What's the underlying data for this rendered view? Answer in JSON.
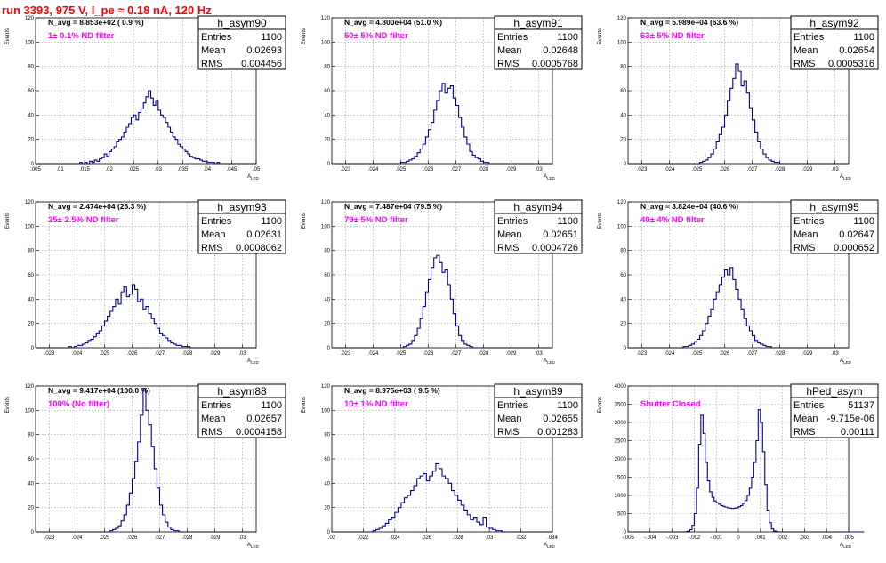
{
  "run_title": "run 3393,   975 V, I_pe ≈ 0.18 nA, 120 Hz",
  "stat_labels": {
    "entries": "Entries",
    "mean": "Mean",
    "rms": "RMS"
  },
  "y_axis_label": "Events",
  "x_axis_label": "A_LED",
  "chart_data": [
    {
      "type": "bar",
      "name": "h_asym90",
      "navg": "N_avg = 8.853e+02 ( 0.9 %)",
      "filter": "1± 0.1% ND filter",
      "entries": "1100",
      "mean": "0.02693",
      "rms": "0.004456",
      "xlim": [
        0.005,
        0.05
      ],
      "ylim": [
        0,
        120
      ],
      "xticks": [
        0.005,
        0.01,
        0.015,
        0.02,
        0.025,
        0.03,
        0.035,
        0.04,
        0.045,
        0.05
      ],
      "yticks": [
        0,
        20,
        40,
        60,
        80,
        100,
        120
      ],
      "x0": 0.005,
      "bin": 0.0005,
      "counts": [
        0,
        0,
        0,
        0,
        0,
        0,
        0,
        0,
        0,
        0,
        0,
        0,
        0,
        0,
        0,
        0,
        0,
        0,
        1,
        0,
        1,
        0,
        2,
        1,
        3,
        2,
        4,
        5,
        8,
        6,
        10,
        12,
        14,
        18,
        20,
        22,
        26,
        30,
        33,
        38,
        40,
        36,
        42,
        45,
        50,
        55,
        60,
        54,
        48,
        52,
        44,
        40,
        38,
        34,
        30,
        26,
        22,
        20,
        16,
        14,
        12,
        10,
        8,
        6,
        5,
        4,
        4,
        3,
        2,
        2,
        1,
        1,
        1,
        0,
        1,
        0,
        0,
        0,
        0,
        0,
        0,
        0,
        0,
        0,
        0,
        0,
        0,
        0,
        0,
        0
      ]
    },
    {
      "type": "bar",
      "name": "h_asym91",
      "navg": "N_avg = 4.800e+04 (51.0 %)",
      "filter": "50± 5% ND filter",
      "entries": "1100",
      "mean": "0.02648",
      "rms": "0.0005768",
      "xlim": [
        0.0225,
        0.0305
      ],
      "ylim": [
        0,
        120
      ],
      "xticks": [
        0.023,
        0.024,
        0.025,
        0.026,
        0.027,
        0.028,
        0.029,
        0.03
      ],
      "yticks": [
        0,
        20,
        40,
        60,
        80,
        100,
        120
      ],
      "x0": 0.0225,
      "bin": 0.0001,
      "counts": [
        0,
        0,
        0,
        0,
        0,
        0,
        0,
        0,
        0,
        0,
        0,
        0,
        0,
        0,
        0,
        0,
        0,
        0,
        0,
        0,
        0,
        0,
        0,
        0,
        0,
        1,
        1,
        2,
        3,
        4,
        6,
        9,
        12,
        16,
        22,
        28,
        34,
        44,
        52,
        60,
        66,
        58,
        62,
        64,
        54,
        48,
        38,
        30,
        22,
        16,
        10,
        7,
        5,
        4,
        2,
        1,
        1,
        0,
        0,
        0,
        0,
        0,
        0,
        0,
        0,
        0,
        0,
        0,
        0,
        0,
        0,
        0,
        0,
        0,
        0,
        0,
        0,
        0,
        0,
        0
      ]
    },
    {
      "type": "bar",
      "name": "h_asym92",
      "navg": "N_avg = 5.989e+04 (63.6 %)",
      "filter": "63± 5% ND filter",
      "entries": "1100",
      "mean": "0.02654",
      "rms": "0.0005316",
      "xlim": [
        0.0225,
        0.0305
      ],
      "ylim": [
        0,
        120
      ],
      "xticks": [
        0.023,
        0.024,
        0.025,
        0.026,
        0.027,
        0.028,
        0.029,
        0.03
      ],
      "yticks": [
        0,
        20,
        40,
        60,
        80,
        100,
        120
      ],
      "x0": 0.0225,
      "bin": 0.0001,
      "counts": [
        0,
        0,
        0,
        0,
        0,
        0,
        0,
        0,
        0,
        0,
        0,
        0,
        0,
        0,
        0,
        0,
        0,
        0,
        0,
        0,
        0,
        0,
        0,
        0,
        0,
        0,
        1,
        2,
        3,
        5,
        8,
        12,
        18,
        24,
        30,
        40,
        52,
        62,
        70,
        82,
        76,
        64,
        68,
        58,
        46,
        36,
        26,
        18,
        12,
        8,
        5,
        3,
        2,
        1,
        1,
        0,
        0,
        0,
        0,
        0,
        0,
        0,
        0,
        0,
        0,
        0,
        0,
        0,
        0,
        0,
        0,
        0,
        0,
        0,
        0,
        0,
        0,
        0,
        0,
        0
      ]
    },
    {
      "type": "bar",
      "name": "h_asym93",
      "navg": "N_avg = 2.474e+04 (26.3 %)",
      "filter": "25± 2.5% ND filter",
      "entries": "1100",
      "mean": "0.02631",
      "rms": "0.0008062",
      "xlim": [
        0.0225,
        0.0305
      ],
      "ylim": [
        0,
        120
      ],
      "xticks": [
        0.023,
        0.024,
        0.025,
        0.026,
        0.027,
        0.028,
        0.029,
        0.03
      ],
      "yticks": [
        0,
        20,
        40,
        60,
        80,
        100,
        120
      ],
      "x0": 0.0225,
      "bin": 0.0001,
      "counts": [
        0,
        0,
        0,
        0,
        0,
        0,
        0,
        0,
        0,
        0,
        0,
        0,
        1,
        0,
        1,
        2,
        2,
        3,
        4,
        6,
        7,
        9,
        12,
        14,
        18,
        22,
        26,
        30,
        34,
        40,
        36,
        46,
        50,
        42,
        44,
        52,
        48,
        38,
        40,
        32,
        34,
        28,
        24,
        20,
        16,
        12,
        10,
        8,
        6,
        4,
        3,
        2,
        2,
        1,
        1,
        1,
        0,
        0,
        0,
        0,
        0,
        0,
        0,
        0,
        0,
        0,
        0,
        0,
        0,
        0,
        0,
        0,
        0,
        0,
        0,
        0,
        0,
        0,
        0,
        0
      ]
    },
    {
      "type": "bar",
      "name": "h_asym94",
      "navg": "N_avg = 7.487e+04 (79.5 %)",
      "filter": "79± 5% ND filter",
      "entries": "1100",
      "mean": "0.02651",
      "rms": "0.0004726",
      "xlim": [
        0.0225,
        0.0305
      ],
      "ylim": [
        0,
        120
      ],
      "xticks": [
        0.023,
        0.024,
        0.025,
        0.026,
        0.027,
        0.028,
        0.029,
        0.03
      ],
      "yticks": [
        0,
        20,
        40,
        60,
        80,
        100,
        120
      ],
      "x0": 0.0225,
      "bin": 0.0001,
      "counts": [
        0,
        0,
        0,
        0,
        0,
        0,
        0,
        0,
        0,
        0,
        0,
        0,
        0,
        0,
        0,
        0,
        0,
        0,
        0,
        0,
        0,
        0,
        0,
        0,
        0,
        0,
        1,
        2,
        3,
        6,
        10,
        16,
        24,
        34,
        46,
        56,
        66,
        74,
        76,
        70,
        62,
        64,
        52,
        40,
        28,
        18,
        10,
        6,
        3,
        2,
        1,
        0,
        0,
        0,
        0,
        0,
        0,
        0,
        0,
        0,
        0,
        0,
        0,
        0,
        0,
        0,
        0,
        0,
        0,
        0,
        0,
        0,
        0,
        0,
        0,
        0,
        0,
        0,
        0,
        0
      ]
    },
    {
      "type": "bar",
      "name": "h_asym95",
      "navg": "N_avg = 3.824e+04 (40.6 %)",
      "filter": "40± 4% ND filter",
      "entries": "1100",
      "mean": "0.02647",
      "rms": "0.000652",
      "xlim": [
        0.0225,
        0.0305
      ],
      "ylim": [
        0,
        120
      ],
      "xticks": [
        0.023,
        0.024,
        0.025,
        0.026,
        0.027,
        0.028,
        0.029,
        0.03
      ],
      "yticks": [
        0,
        20,
        40,
        60,
        80,
        100,
        120
      ],
      "x0": 0.0225,
      "bin": 0.0001,
      "counts": [
        0,
        0,
        0,
        0,
        0,
        0,
        0,
        0,
        0,
        0,
        0,
        0,
        0,
        0,
        0,
        0,
        0,
        0,
        0,
        0,
        1,
        1,
        2,
        3,
        5,
        7,
        10,
        14,
        20,
        26,
        32,
        40,
        46,
        52,
        58,
        64,
        60,
        66,
        56,
        48,
        40,
        32,
        24,
        18,
        14,
        10,
        6,
        4,
        3,
        2,
        1,
        1,
        0,
        0,
        0,
        0,
        0,
        0,
        0,
        0,
        0,
        0,
        0,
        0,
        0,
        0,
        0,
        0,
        0,
        0,
        0,
        0,
        0,
        0,
        0,
        0,
        0,
        0,
        0,
        0
      ]
    },
    {
      "type": "bar",
      "name": "h_asym88",
      "navg": "N_avg = 9.417e+04 (100.0 %)",
      "filter": "100% (No filter)",
      "entries": "1100",
      "mean": "0.02657",
      "rms": "0.0004158",
      "xlim": [
        0.0225,
        0.0305
      ],
      "ylim": [
        0,
        120
      ],
      "xticks": [
        0.023,
        0.024,
        0.025,
        0.026,
        0.027,
        0.028,
        0.029,
        0.03
      ],
      "yticks": [
        0,
        20,
        40,
        60,
        80,
        100,
        120
      ],
      "x0": 0.0225,
      "bin": 0.0001,
      "counts": [
        0,
        0,
        0,
        0,
        0,
        0,
        0,
        0,
        0,
        0,
        0,
        0,
        0,
        0,
        0,
        0,
        0,
        0,
        0,
        0,
        0,
        0,
        0,
        0,
        0,
        0,
        0,
        1,
        2,
        3,
        5,
        9,
        14,
        22,
        32,
        44,
        58,
        74,
        96,
        118,
        100,
        88,
        70,
        52,
        36,
        22,
        14,
        8,
        4,
        2,
        1,
        1,
        0,
        0,
        0,
        0,
        0,
        0,
        0,
        0,
        0,
        0,
        0,
        0,
        0,
        0,
        0,
        0,
        0,
        0,
        0,
        0,
        0,
        0,
        0,
        0,
        0,
        0,
        0,
        0
      ]
    },
    {
      "type": "bar",
      "name": "h_asym89",
      "navg": "N_avg = 8.975e+03 ( 9.5 %)",
      "filter": "10± 1% ND filter",
      "entries": "1100",
      "mean": "0.02655",
      "rms": "0.001283",
      "xlim": [
        0.02,
        0.034
      ],
      "ylim": [
        0,
        120
      ],
      "xticks": [
        0.02,
        0.022,
        0.024,
        0.026,
        0.028,
        0.03,
        0.032,
        0.034
      ],
      "yticks": [
        0,
        20,
        40,
        60,
        80,
        100,
        120
      ],
      "x0": 0.02,
      "bin": 0.0002,
      "counts": [
        0,
        0,
        0,
        0,
        0,
        0,
        0,
        0,
        0,
        0,
        0,
        0,
        0,
        1,
        2,
        3,
        5,
        7,
        10,
        12,
        16,
        20,
        24,
        28,
        30,
        34,
        38,
        44,
        46,
        48,
        42,
        46,
        50,
        56,
        52,
        46,
        44,
        40,
        34,
        30,
        26,
        22,
        18,
        14,
        10,
        12,
        8,
        6,
        12,
        4,
        3,
        2,
        1,
        1,
        0,
        0,
        0,
        0,
        0,
        0,
        0,
        0,
        0,
        0,
        0,
        0,
        0,
        0,
        0,
        0
      ]
    },
    {
      "type": "bar",
      "name": "hPed_asym",
      "navg": "",
      "filter": "Shutter Closed",
      "entries": "51137",
      "mean": "-9.715e-06",
      "rms": "0.00111",
      "xlim": [
        -0.005,
        0.005
      ],
      "ylim": [
        0,
        4000
      ],
      "xticks": [
        -0.005,
        -0.004,
        -0.003,
        -0.002,
        -0.001,
        0,
        0.001,
        0.002,
        0.003,
        0.004,
        0.005
      ],
      "yticks": [
        0,
        500,
        1000,
        1500,
        2000,
        2500,
        3000,
        3500,
        4000
      ],
      "x0": -0.005,
      "bin": 0.0001,
      "counts": [
        0,
        0,
        0,
        0,
        0,
        0,
        0,
        0,
        0,
        0,
        0,
        0,
        0,
        0,
        0,
        0,
        0,
        0,
        0,
        0,
        0,
        0,
        0,
        0,
        0,
        0,
        5,
        20,
        60,
        180,
        500,
        1200,
        2400,
        3200,
        2700,
        1900,
        1400,
        1100,
        950,
        850,
        800,
        760,
        720,
        700,
        680,
        660,
        650,
        640,
        650,
        660,
        690,
        720,
        780,
        860,
        1000,
        1200,
        1500,
        1900,
        2500,
        3350,
        3000,
        2200,
        1300,
        600,
        250,
        80,
        25,
        8,
        0,
        0,
        0,
        0,
        0,
        0,
        0,
        0,
        0,
        0,
        0,
        0,
        0,
        0,
        0,
        0,
        0,
        0,
        0,
        0,
        0,
        0,
        0,
        0,
        0,
        0,
        0,
        0,
        0,
        0,
        0,
        0,
        0,
        0,
        0,
        0,
        0,
        0,
        0
      ]
    }
  ]
}
